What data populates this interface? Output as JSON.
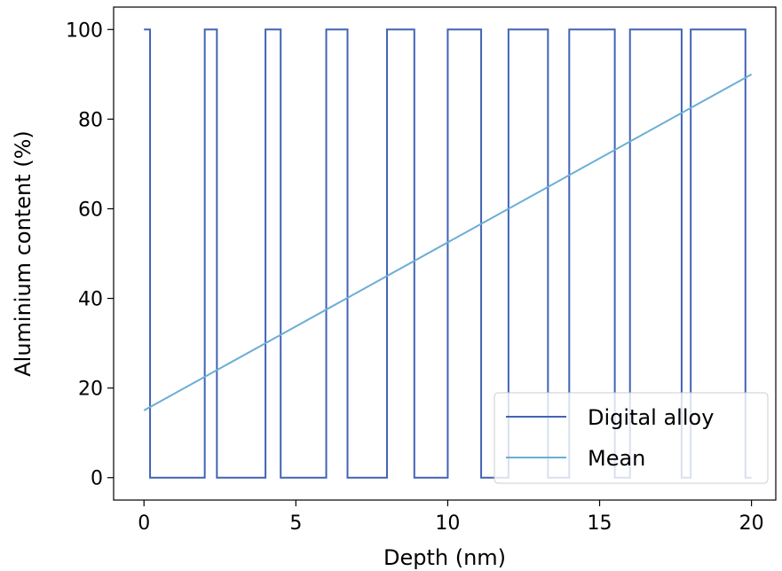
{
  "chart_data": {
    "type": "line",
    "title": "",
    "xlabel": "Depth (nm)",
    "ylabel": "Aluminium content (%)",
    "xlim": [
      -1,
      20.8
    ],
    "ylim": [
      -5,
      105
    ],
    "xticks": [
      0,
      5,
      10,
      15,
      20
    ],
    "yticks": [
      0,
      20,
      40,
      60,
      80,
      100
    ],
    "xtick_labels": [
      "0",
      "5",
      "10",
      "15",
      "20"
    ],
    "ytick_labels": [
      "0",
      "20",
      "40",
      "60",
      "80",
      "100"
    ],
    "grid": false,
    "legend_position": "lower-right",
    "series": [
      {
        "name": "Digital alloy",
        "color": "#4163b5",
        "style": "step",
        "x": [
          0,
          0.2,
          0.2,
          2.0,
          2.0,
          2.4,
          2.4,
          4.0,
          4.0,
          4.5,
          4.5,
          6.0,
          6.0,
          6.7,
          6.7,
          8.0,
          8.0,
          8.9,
          8.9,
          10.0,
          10.0,
          11.1,
          11.1,
          12.0,
          12.0,
          13.3,
          13.3,
          14.0,
          14.0,
          15.5,
          15.5,
          16.0,
          16.0,
          17.7,
          17.7,
          18.0,
          18.0,
          19.8,
          19.8,
          20.0
        ],
        "y": [
          100,
          100,
          0,
          0,
          100,
          100,
          0,
          0,
          100,
          100,
          0,
          0,
          100,
          100,
          0,
          0,
          100,
          100,
          0,
          0,
          100,
          100,
          0,
          0,
          100,
          100,
          0,
          0,
          100,
          100,
          0,
          0,
          100,
          100,
          0,
          0,
          100,
          100,
          0,
          0
        ]
      },
      {
        "name": "Mean",
        "color": "#6baed6",
        "style": "line",
        "x": [
          0,
          20
        ],
        "y": [
          15,
          90
        ]
      }
    ]
  }
}
